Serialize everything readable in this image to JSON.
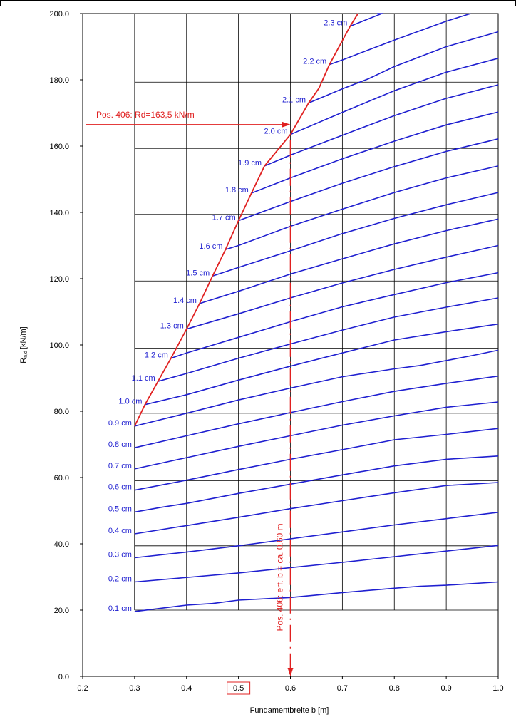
{
  "chart_data": {
    "type": "line",
    "xlabel": "Fundamentbreite b [m]",
    "ylabel_main": "R",
    "ylabel_sub": "n,d",
    "ylabel_unit": "[kN/m]",
    "xlim": [
      0.2,
      1.0
    ],
    "ylim": [
      0,
      200
    ],
    "x_ticks": [
      "0.2",
      "0.3",
      "0.4",
      "0.5",
      "0.6",
      "0.7",
      "0.8",
      "0.9",
      "1.0"
    ],
    "y_ticks": [
      "0.0",
      "20.0",
      "40.0",
      "60.0",
      "80.0",
      "100.0",
      "120.0",
      "140.0",
      "160.0",
      "180.0",
      "200.0"
    ],
    "x_tick_values": [
      0.2,
      0.3,
      0.4,
      0.5,
      0.6,
      0.7,
      0.8,
      0.9,
      1.0
    ],
    "y_tick_values": [
      0,
      20,
      40,
      60,
      80,
      100,
      120,
      140,
      160,
      180,
      200
    ],
    "highlighted_x_tick": "0.5",
    "grid_vertical_x": [
      0.3,
      0.4,
      0.5,
      0.6,
      0.7,
      0.8,
      0.9,
      1.0
    ],
    "grid_horizontal_y": [
      20,
      39.4,
      59,
      79.4,
      99,
      119.3,
      139.4,
      159.3,
      179.3
    ],
    "colors": {
      "curves": "#1f1fd0",
      "limit": "#e02020",
      "grid": "#000000"
    },
    "series": [
      {
        "name": "0.1 cm",
        "x": [
          0.3,
          0.4,
          0.45,
          0.5,
          0.6,
          0.7,
          0.8,
          0.85,
          0.9,
          1.0
        ],
        "y": [
          19.6,
          21.5,
          22,
          23,
          23.8,
          25.3,
          26.6,
          27.2,
          27.5,
          28.5
        ]
      },
      {
        "name": "0.2 cm",
        "x": [
          0.3,
          0.5,
          0.7,
          0.9,
          1.0
        ],
        "y": [
          28.5,
          31.2,
          34.4,
          37.8,
          39.5
        ]
      },
      {
        "name": "0.3 cm",
        "x": [
          0.3,
          0.4,
          0.5,
          0.6,
          0.7,
          0.8,
          0.9,
          1.0
        ],
        "y": [
          35.8,
          37.5,
          39.4,
          41.5,
          43.6,
          45.7,
          47.6,
          49.5
        ]
      },
      {
        "name": "0.4 cm",
        "x": [
          0.3,
          0.4,
          0.5,
          0.6,
          0.7,
          0.8,
          0.9,
          1.0
        ],
        "y": [
          43,
          45.5,
          48,
          50.6,
          53,
          55.4,
          57.6,
          58.5
        ]
      },
      {
        "name": "0.5 cm",
        "x": [
          0.3,
          0.35,
          0.4,
          0.5,
          0.6,
          0.7,
          0.8,
          0.9,
          1.0
        ],
        "y": [
          49.6,
          51,
          52.2,
          55.2,
          58,
          60.8,
          63.5,
          65.5,
          66.5
        ]
      },
      {
        "name": "0.6 cm",
        "x": [
          0.3,
          0.4,
          0.5,
          0.6,
          0.7,
          0.8,
          0.9,
          1.0
        ],
        "y": [
          56.2,
          59.2,
          62.4,
          65.5,
          68.4,
          71.4,
          73,
          74.8
        ]
      },
      {
        "name": "0.7 cm",
        "x": [
          0.3,
          0.4,
          0.5,
          0.6,
          0.7,
          0.8,
          0.9,
          1.0
        ],
        "y": [
          62.6,
          66,
          69.4,
          72.6,
          75.8,
          78.6,
          81.2,
          82.8
        ]
      },
      {
        "name": "0.8 cm",
        "x": [
          0.3,
          0.4,
          0.5,
          0.6,
          0.7,
          0.8,
          0.9,
          1.0
        ],
        "y": [
          69,
          72.6,
          76.2,
          79.6,
          82.9,
          86,
          88.4,
          90.6
        ]
      },
      {
        "name": "0.9 cm",
        "x": [
          0.3,
          0.4,
          0.5,
          0.6,
          0.7,
          0.8,
          0.85,
          0.9,
          0.95,
          1.0
        ],
        "y": [
          75.5,
          79.4,
          83.4,
          87,
          90.4,
          92.8,
          93.8,
          95.3,
          96.8,
          98.4
        ]
      },
      {
        "name": "1.0 cm",
        "x": [
          0.32,
          0.4,
          0.5,
          0.6,
          0.7,
          0.8,
          0.9,
          1.0
        ],
        "y": [
          82,
          85,
          89.4,
          93.6,
          97.6,
          101.5,
          104,
          106.3
        ]
      },
      {
        "name": "1.1 cm",
        "x": [
          0.345,
          0.4,
          0.5,
          0.6,
          0.7,
          0.8,
          0.9,
          1.0
        ],
        "y": [
          89,
          91.4,
          96,
          100.3,
          104.5,
          108.4,
          111.4,
          114.2
        ]
      },
      {
        "name": "1.2 cm",
        "x": [
          0.37,
          0.4,
          0.5,
          0.6,
          0.7,
          0.8,
          0.9,
          1.0
        ],
        "y": [
          96,
          97.6,
          102.3,
          107,
          111.5,
          115.2,
          118.8,
          121.8
        ]
      },
      {
        "name": "1.3 cm",
        "x": [
          0.4,
          0.5,
          0.6,
          0.7,
          0.8,
          0.9,
          1.0
        ],
        "y": [
          104.8,
          109.4,
          114.2,
          118.7,
          122.8,
          126.5,
          130
        ]
      },
      {
        "name": "1.4 cm",
        "x": [
          0.425,
          0.5,
          0.6,
          0.7,
          0.8,
          0.9,
          1.0
        ],
        "y": [
          112.5,
          116.2,
          121.4,
          126,
          130.5,
          134.5,
          138
        ]
      },
      {
        "name": "1.5 cm",
        "x": [
          0.45,
          0.5,
          0.6,
          0.7,
          0.8,
          0.9,
          1.0
        ],
        "y": [
          120.8,
          123.4,
          128.4,
          133.6,
          138.2,
          142.3,
          146
        ]
      },
      {
        "name": "1.6 cm",
        "x": [
          0.475,
          0.5,
          0.6,
          0.7,
          0.8,
          0.9,
          1.0
        ],
        "y": [
          128.8,
          130,
          135.8,
          141,
          146,
          150.4,
          154
        ]
      },
      {
        "name": "1.7 cm",
        "x": [
          0.5,
          0.6,
          0.7,
          0.8,
          0.9,
          1.0
        ],
        "y": [
          137.5,
          143.3,
          148.8,
          153.8,
          158.4,
          162.2
        ]
      },
      {
        "name": "1.8 cm",
        "x": [
          0.525,
          0.6,
          0.7,
          0.8,
          0.9,
          1.0
        ],
        "y": [
          145.8,
          150.4,
          156.2,
          161.5,
          166.4,
          170.3
        ]
      },
      {
        "name": "1.9 cm",
        "x": [
          0.55,
          0.6,
          0.7,
          0.8,
          0.9,
          1.0
        ],
        "y": [
          154,
          157.3,
          163.3,
          169.2,
          174.4,
          178.5
        ]
      },
      {
        "name": "2.0 cm",
        "x": [
          0.6,
          0.7,
          0.8,
          0.9,
          1.0
        ],
        "y": [
          163.5,
          170.2,
          176.7,
          182.3,
          186.5
        ]
      },
      {
        "name": "2.1 cm",
        "x": [
          0.635,
          0.7,
          0.75,
          0.8,
          0.9,
          1.0
        ],
        "y": [
          173,
          177.3,
          180.3,
          184,
          190,
          194.5
        ]
      },
      {
        "name": "2.2 cm",
        "x": [
          0.675,
          0.7,
          0.8,
          0.9,
          1.0
        ],
        "y": [
          184.6,
          186,
          192,
          197.7,
          202.6
        ]
      },
      {
        "name": "2.3 cm",
        "x": [
          0.715,
          0.8,
          0.85,
          0.88
        ],
        "y": [
          196.2,
          201.5,
          205,
          206.8
        ]
      }
    ],
    "curve_label_x": [
      0.3,
      0.3,
      0.3,
      0.3,
      0.3,
      0.3,
      0.3,
      0.3,
      0.3,
      0.32,
      0.345,
      0.37,
      0.4,
      0.425,
      0.45,
      0.475,
      0.5,
      0.525,
      0.55,
      0.6,
      0.635,
      0.675,
      0.715
    ],
    "limit_curve": {
      "x": [
        0.3,
        0.32,
        0.345,
        0.37,
        0.4,
        0.425,
        0.45,
        0.475,
        0.5,
        0.525,
        0.55,
        0.6,
        0.635,
        0.655,
        0.675,
        0.715,
        0.77
      ],
      "y": [
        75.5,
        82,
        89,
        96,
        104.8,
        112.5,
        120.8,
        128.8,
        137.5,
        145.8,
        154,
        163.5,
        173,
        177.5,
        184.6,
        196.2,
        210
      ]
    },
    "annotation_rd": {
      "text": "Pos. 406: Rd=163,5 kN/m",
      "y": 166.5,
      "x_start": 0.205,
      "x_end": 0.6
    },
    "annotation_b": {
      "text": "Pos. 406: erf. b = ca. 0.60 m",
      "x": 0.6,
      "y_top": 163.5,
      "y_bottom": 0
    }
  }
}
